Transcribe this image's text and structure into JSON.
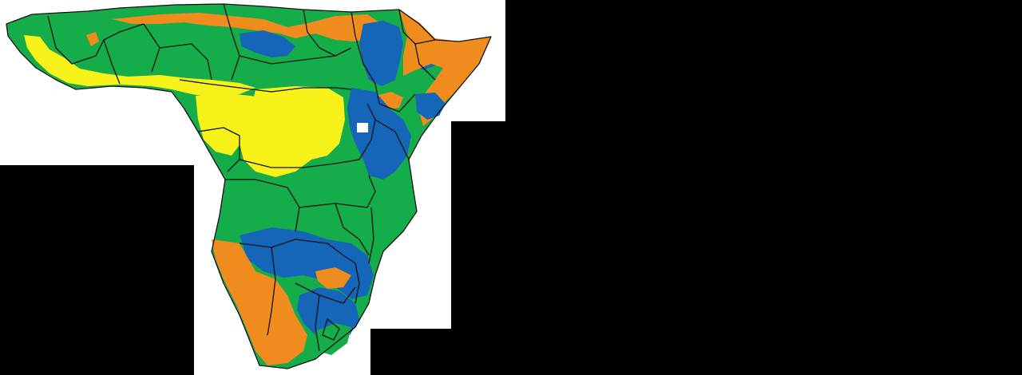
{
  "map": {
    "background_color": "#000000",
    "paper_color": "#ffffff",
    "border_color": "#111111",
    "palette": {
      "yellow": "#f7f21a",
      "orange": "#f08c1e",
      "green": "#14ad4a",
      "blue": "#1565b8"
    },
    "regions": [
      {
        "name": "sahel-north-band",
        "class": "orange"
      },
      {
        "name": "sahel-west-band",
        "class": "green"
      },
      {
        "name": "west-coast-strip",
        "class": "yellow"
      },
      {
        "name": "northeast-highlands",
        "class": "blue"
      },
      {
        "name": "horn-of-africa",
        "class": "orange"
      },
      {
        "name": "central-basin",
        "class": "green"
      },
      {
        "name": "gabon-congo",
        "class": "yellow"
      },
      {
        "name": "drc-core",
        "class": "yellow"
      },
      {
        "name": "east-african-highlands",
        "class": "blue"
      },
      {
        "name": "angola-zambia-zone",
        "class": "green"
      },
      {
        "name": "zambezi-belt",
        "class": "blue"
      },
      {
        "name": "southern-west",
        "class": "orange"
      },
      {
        "name": "southern-interior",
        "class": "blue"
      },
      {
        "name": "mozambique-coast",
        "class": "green"
      },
      {
        "name": "southern-east-coast",
        "class": "green"
      }
    ]
  }
}
